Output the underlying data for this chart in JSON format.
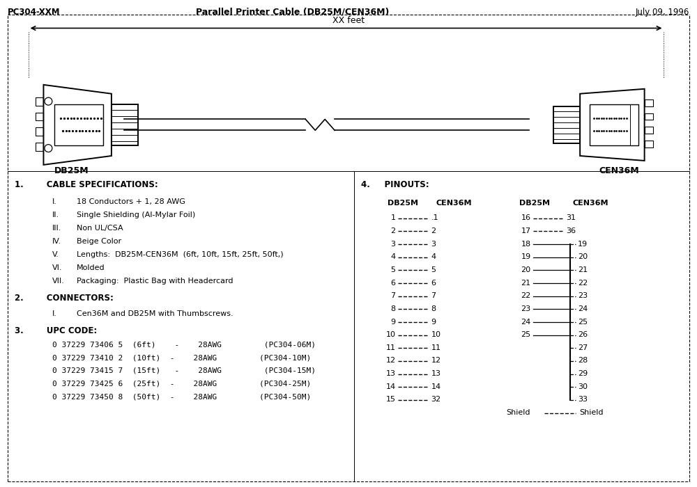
{
  "title_left": "PC304-XXM",
  "title_center": "Parallel Printer Cable (DB25M/CEN36M)",
  "title_right": "July 09, 1996",
  "bg_color": "#ffffff",
  "text_color": "#000000",
  "section1_header": "1.        CABLE SPECIFICATIONS:",
  "section1_items": [
    [
      "I.",
      "18 Conductors + 1, 28 AWG"
    ],
    [
      "II.",
      "Single Shielding (Al-Mylar Foil)"
    ],
    [
      "III.",
      "Non UL/CSA"
    ],
    [
      "IV.",
      "Beige Color"
    ],
    [
      "V.",
      "Lengths:  DB25M-CEN36M  (6ft, 10ft, 15ft, 25ft, 50ft,)"
    ],
    [
      "VI.",
      "Molded"
    ],
    [
      "VII.",
      "Packaging:  Plastic Bag with Headercard"
    ]
  ],
  "section2_header": "2.        CONNECTORS:",
  "section2_items": [
    [
      "I.",
      "Cen36M and DB25M with Thumbscrews."
    ]
  ],
  "section3_header": "3.        UPC CODE:",
  "section3_items": [
    "0 37229 73406 5  (6ft)    -    28AWG         (PC304-06M)",
    "0 37229 73410 2  (10ft)  -    28AWG         (PC304-10M)",
    "0 37229 73415 7  (15ft)   -    28AWG         (PC304-15M)",
    "0 37229 73425 6  (25ft)  -    28AWG         (PC304-25M)",
    "0 37229 73450 8  (50ft)  -    28AWG         (PC304-50M)"
  ],
  "section4_header": "4.     PINOUTS:",
  "pinout_left": [
    [
      "1",
      ".1"
    ],
    [
      "2",
      "2"
    ],
    [
      "3",
      "3"
    ],
    [
      "4",
      "4"
    ],
    [
      "5",
      "5"
    ],
    [
      "6",
      "6"
    ],
    [
      "7",
      "7"
    ],
    [
      "8",
      "8"
    ],
    [
      "9",
      "9"
    ],
    [
      "10",
      "10"
    ],
    [
      "11",
      "11"
    ],
    [
      "12",
      "12"
    ],
    [
      "13",
      "13"
    ],
    [
      "14",
      "14"
    ],
    [
      "15",
      "32"
    ]
  ],
  "pinout_right_db25": [
    "16",
    "17",
    "18",
    "19",
    "20",
    "21",
    "22",
    "23",
    "24",
    "25",
    "",
    "",
    "",
    "",
    "",
    "Shield"
  ],
  "pinout_right_cen36": [
    "31",
    "36",
    "19",
    "20",
    "21",
    "22",
    "23",
    "24",
    "25",
    "26",
    "27",
    "28",
    "29",
    "30",
    "33",
    "Shield"
  ],
  "xx_feet_label": "XX feet",
  "db25m_label": "DB25M",
  "cen36m_label": "CEN36M"
}
